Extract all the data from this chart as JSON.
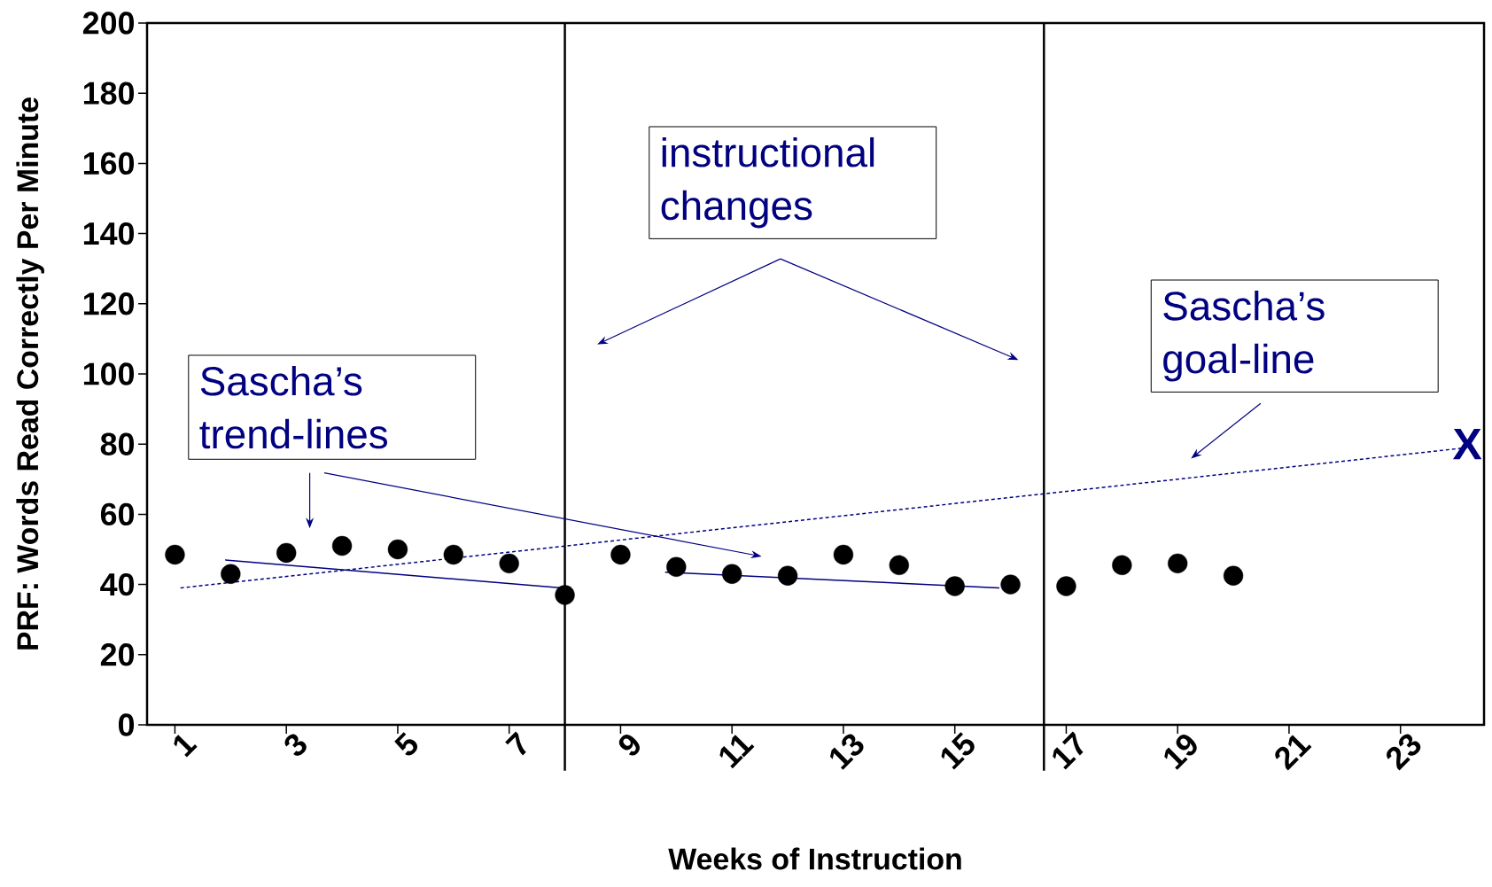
{
  "chart_data": {
    "type": "scatter",
    "xlabel": "Weeks of Instruction",
    "ylabel": "PRF: Words Read Correctly Per Minute",
    "xlim": [
      0.5,
      24.5
    ],
    "xticks": [
      1,
      3,
      5,
      7,
      9,
      11,
      13,
      15,
      17,
      19,
      21,
      23
    ],
    "ylim": [
      0,
      200
    ],
    "yticks": [
      0,
      20,
      40,
      60,
      80,
      100,
      120,
      140,
      160,
      180,
      200
    ],
    "grid": false,
    "series": [
      {
        "marker": "circle",
        "color": "#000000",
        "x": [
          1,
          2,
          3,
          4,
          5,
          6,
          7,
          8,
          9,
          10,
          11,
          12,
          13,
          14,
          15,
          16,
          17,
          18,
          19,
          20
        ],
        "values": [
          48.5,
          43,
          49,
          51,
          50,
          48.5,
          46,
          37,
          48.5,
          45,
          43,
          42.5,
          48.5,
          45.5,
          39.5,
          40,
          39.5,
          45.5,
          46,
          42.5
        ]
      },
      {
        "type": "line",
        "marker": "none",
        "color": "#000080",
        "line_style": "solid",
        "x": [
          1.9,
          7.95
        ],
        "values": [
          47,
          39
        ]
      },
      {
        "type": "line",
        "marker": "none",
        "color": "#000080",
        "line_style": "solid",
        "x": [
          9.8,
          15.8
        ],
        "values": [
          43.5,
          39
        ]
      },
      {
        "type": "line",
        "marker": "none",
        "color": "#000080",
        "line_style": "dashed",
        "x": [
          1.1,
          24.2
        ],
        "values": [
          39,
          79
        ]
      }
    ],
    "ref_lines": [
      {
        "axis": "x",
        "value": 8,
        "color": "#000000"
      },
      {
        "axis": "x",
        "value": 16.6,
        "color": "#000000"
      }
    ],
    "annotations": [
      "Sascha’s trend-lines",
      "instructional changes",
      "Sascha’s goal-line",
      {
        "text": "X",
        "x": 24.2,
        "y": 80
      }
    ]
  }
}
